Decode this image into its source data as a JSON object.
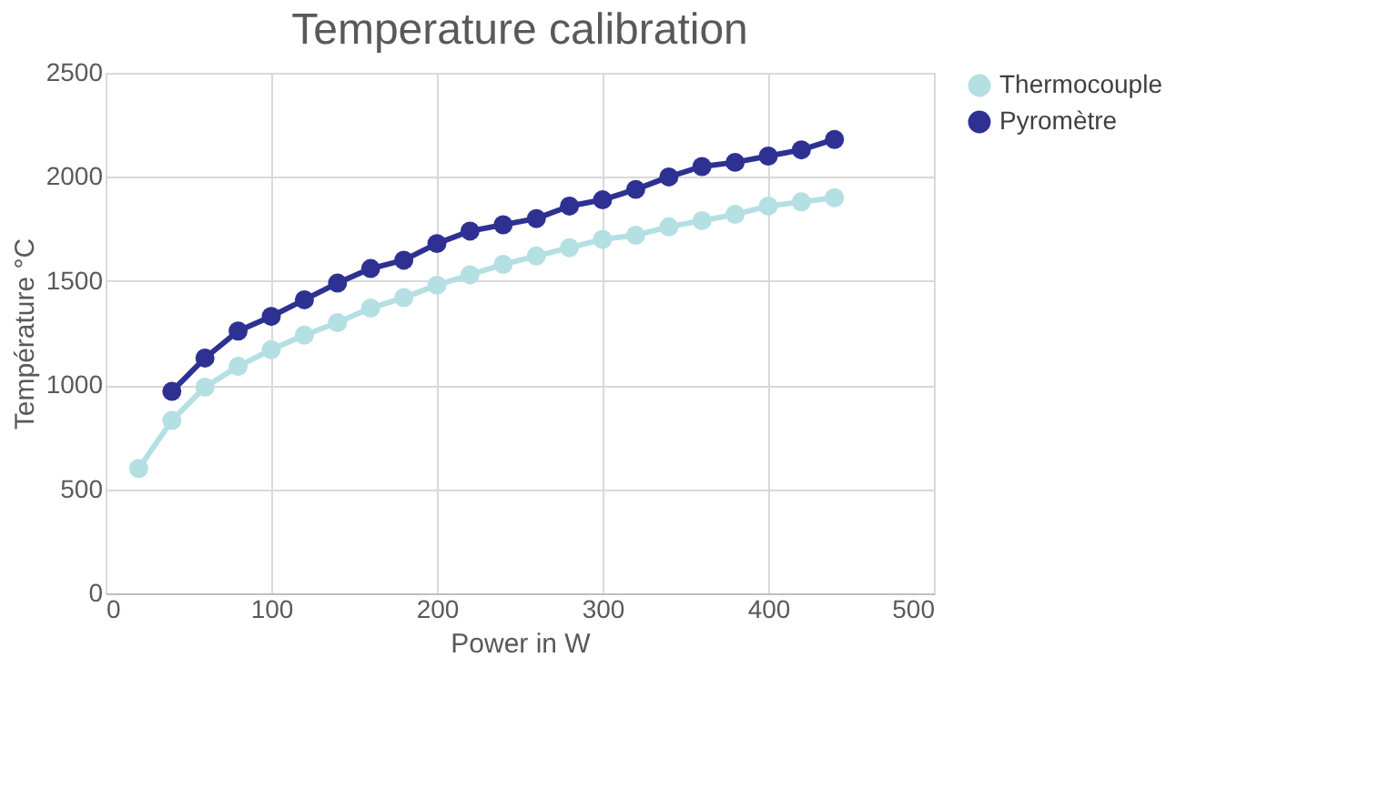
{
  "chart_data": {
    "type": "line",
    "title": "Temperature calibration",
    "xlabel": "Power in W",
    "ylabel": "Température °C",
    "xlim": [
      0,
      500
    ],
    "xticks": [
      0,
      100,
      200,
      300,
      400,
      500
    ],
    "ylim": [
      0,
      2500
    ],
    "yticks": [
      0,
      500,
      1000,
      1500,
      2000,
      2500
    ],
    "grid": true,
    "legend": "right",
    "marker": "circle",
    "line_style": "solid",
    "series": [
      {
        "name": "Thermocouple",
        "color": "#b4dfe3",
        "x": [
          20,
          40,
          60,
          80,
          100,
          120,
          140,
          160,
          180,
          200,
          220,
          240,
          260,
          280,
          300,
          320,
          340,
          360,
          380,
          400,
          420,
          440
        ],
        "values": [
          600,
          830,
          990,
          1090,
          1170,
          1240,
          1300,
          1370,
          1420,
          1480,
          1530,
          1580,
          1620,
          1660,
          1700,
          1720,
          1760,
          1790,
          1820,
          1860,
          1880,
          1900
        ]
      },
      {
        "name": "Pyromètre",
        "color": "#2e3192",
        "x": [
          40,
          60,
          80,
          100,
          120,
          140,
          160,
          180,
          200,
          220,
          240,
          260,
          280,
          300,
          320,
          340,
          360,
          380,
          400,
          420,
          440
        ],
        "values": [
          970,
          1130,
          1260,
          1330,
          1410,
          1490,
          1560,
          1600,
          1680,
          1740,
          1770,
          1800,
          1860,
          1890,
          1940,
          2000,
          2050,
          2070,
          2100,
          2130,
          2180
        ]
      }
    ]
  }
}
